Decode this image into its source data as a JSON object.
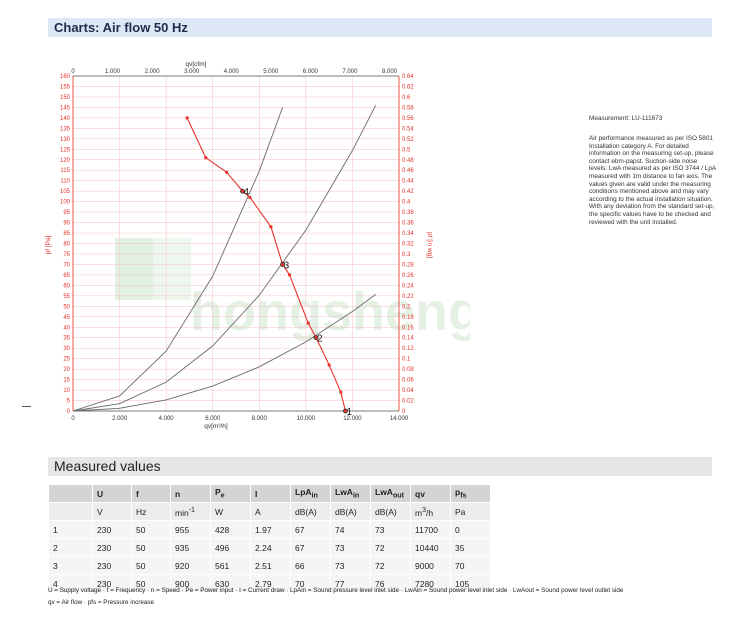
{
  "header": {
    "title": "Charts: Air flow 50 Hz"
  },
  "measured": {
    "title": "Measured values"
  },
  "notes": {
    "measurement": "Measurement: LU-111673",
    "performance": "Air performance measured as per ISO 5801 Installation category A. For detailed information on the measuring set-up, please contact ebm-papst. Suction-side noise levels: LwA measured as per ISO 3744 / LpA measured with 1m distance to fan axis. The values given are valid under the measuring conditions mentioned above and may vary according to the actual installation situation. With any deviation from the standard set-up, the specific values have to be checked and reviewed with the unit installed."
  },
  "chart_data": {
    "type": "line",
    "title": "",
    "watermark": "hongsheng",
    "colors": {
      "curve": "#e8312a",
      "system": "#6a6a6a",
      "grid": "#f2c2c2",
      "axis": "#e8312a"
    },
    "x_bottom": {
      "label": "qv[m³/h]",
      "range": [
        0,
        14000
      ],
      "ticks": [
        "0",
        "2.000",
        "4.000",
        "6.000",
        "8.000",
        "10.000",
        "12.000",
        "14.000"
      ]
    },
    "x_top": {
      "label": "qv[cfm]",
      "range": [
        0,
        8240
      ],
      "ticks": [
        "0",
        "1.000",
        "2.000",
        "3.000",
        "4.000",
        "5.000",
        "6.000",
        "7.000",
        "8.000"
      ]
    },
    "y_left": {
      "label": "pf [Pa]",
      "range": [
        0,
        160
      ],
      "ticks": [
        "0",
        "5",
        "10",
        "15",
        "20",
        "25",
        "30",
        "35",
        "40",
        "45",
        "50",
        "55",
        "60",
        "65",
        "70",
        "75",
        "80",
        "85",
        "90",
        "95",
        "100",
        "105",
        "110",
        "115",
        "120",
        "125",
        "130",
        "135",
        "140",
        "145",
        "150",
        "155",
        "160"
      ]
    },
    "y_right": {
      "label": "pf [in wg]",
      "range": [
        0,
        0.64
      ],
      "ticks": [
        "0",
        "0.02",
        "0.04",
        "0.06",
        "0.08",
        "0.1",
        "0.12",
        "0.14",
        "0.16",
        "0.18",
        "0.2",
        "0.22",
        "0.24",
        "0.26",
        "0.28",
        "0.3",
        "0.32",
        "0.34",
        "0.36",
        "0.38",
        "0.4",
        "0.42",
        "0.44",
        "0.46",
        "0.48",
        "0.5",
        "0.52",
        "0.54",
        "0.56",
        "0.58",
        "0.6",
        "0.62",
        "0.64"
      ]
    },
    "series": [
      {
        "name": "",
        "x": [
          4900,
          5700,
          6600,
          7280,
          7600,
          8500,
          9000,
          9300,
          10100,
          10440,
          11000,
          11500,
          11700
        ],
        "y": [
          140,
          121,
          114,
          105,
          102,
          88,
          70,
          65,
          42,
          35,
          22,
          9,
          0
        ]
      }
    ],
    "system_curves": [
      {
        "x": [
          0,
          2000,
          4000,
          6000,
          8000,
          9000
        ],
        "y": [
          0,
          7.2,
          28.6,
          64.4,
          114.6,
          145
        ]
      },
      {
        "x": [
          0,
          2000,
          4000,
          6000,
          8000,
          10000,
          12000,
          13000
        ],
        "y": [
          0,
          3.5,
          13.8,
          31.1,
          55.3,
          86.4,
          124.4,
          146
        ]
      },
      {
        "x": [
          0,
          2000,
          4000,
          6000,
          8000,
          10000,
          12000,
          13000
        ],
        "y": [
          0,
          1.3,
          5.3,
          11.9,
          21.1,
          33,
          47.5,
          55.7
        ]
      }
    ],
    "operating_points": [
      {
        "label": "1",
        "x": 11700,
        "y": 0
      },
      {
        "label": "2",
        "x": 10440,
        "y": 35
      },
      {
        "label": "3",
        "x": 9000,
        "y": 70
      },
      {
        "label": "4",
        "x": 7280,
        "y": 105
      }
    ]
  },
  "table": {
    "headers": [
      {
        "main": "U",
        "sub": ""
      },
      {
        "main": "f",
        "sub": ""
      },
      {
        "main": "n",
        "sub": ""
      },
      {
        "main": "P",
        "sub": "e"
      },
      {
        "main": "I",
        "sub": ""
      },
      {
        "main": "LpA",
        "sub": "in"
      },
      {
        "main": "LwA",
        "sub": "in"
      },
      {
        "main": "LwA",
        "sub": "out"
      },
      {
        "main": "qv",
        "sub": ""
      },
      {
        "main": "p",
        "sub": "fs"
      }
    ],
    "units": [
      {
        "main": "V",
        "sup": ""
      },
      {
        "main": "Hz",
        "sup": ""
      },
      {
        "main": "min",
        "sup": "-1"
      },
      {
        "main": "W",
        "sup": ""
      },
      {
        "main": "A",
        "sup": ""
      },
      {
        "main": "dB(A)",
        "sup": ""
      },
      {
        "main": "dB(A)",
        "sup": ""
      },
      {
        "main": "dB(A)",
        "sup": ""
      },
      {
        "main": "m",
        "sup": "3",
        "after": "/h"
      },
      {
        "main": "Pa",
        "sup": ""
      }
    ],
    "rows": [
      [
        "1",
        "230",
        "50",
        "955",
        "428",
        "1.97",
        "67",
        "74",
        "73",
        "11700",
        "0"
      ],
      [
        "2",
        "230",
        "50",
        "935",
        "496",
        "2.24",
        "67",
        "73",
        "72",
        "10440",
        "35"
      ],
      [
        "3",
        "230",
        "50",
        "920",
        "561",
        "2.51",
        "66",
        "73",
        "72",
        "9000",
        "70"
      ],
      [
        "4",
        "230",
        "50",
        "900",
        "630",
        "2.79",
        "70",
        "77",
        "76",
        "7280",
        "105"
      ]
    ]
  },
  "legend": {
    "line1": "U = Supply voltage · f = Frequency · n = Speed · Pe = Power input · I = Current draw · LpAin = Sound pressure level inlet side · LwAin = Sound power level inlet side · LwAout = Sound power level outlet side",
    "line2": "qv = Air flow · pfs = Pressure increase"
  }
}
